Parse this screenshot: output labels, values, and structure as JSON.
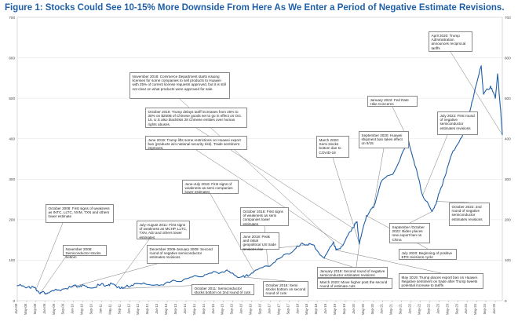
{
  "title": "Figure 1: Stocks Could See 10-15% More Downside From Here As We Enter a Period of Negative Estimate Revisions.",
  "chart_data": {
    "type": "line",
    "title": "Figure 1: Stocks Could See 10-15% More Downside From Here As We Enter a Period of Negative Estimate Revisions.",
    "ylim": [
      0,
      7000
    ],
    "y_ticks": [
      "0",
      "100",
      "200",
      "300",
      "400",
      "500",
      "600",
      "700"
    ],
    "y_tick_values": [
      0,
      1000,
      2000,
      3000,
      4000,
      5000,
      6000,
      7000
    ],
    "x_ticks": [
      "Jan-08",
      "May-08",
      "Sep-08",
      "Jan-09",
      "May-09",
      "Sep-09",
      "Jan-10",
      "May-10",
      "Sep-10",
      "Jan-11",
      "May-11",
      "Sep-11",
      "Jan-12",
      "May-12",
      "Sep-12",
      "Jan-13",
      "May-13",
      "Sep-13",
      "Jan-14",
      "May-14",
      "Sep-14",
      "Jan-15",
      "May-15",
      "Sep-15",
      "Jan-16",
      "May-16",
      "Sep-16",
      "Jan-17",
      "May-17",
      "Sep-17",
      "Jan-18",
      "May-18",
      "Sep-18",
      "Jan-19",
      "May-19",
      "Sep-19",
      "Jan-20",
      "May-20",
      "Sep-20",
      "Jan-21",
      "May-21",
      "Sep-21",
      "Jan-22",
      "May-22",
      "Sep-22",
      "Jan-23",
      "May-23",
      "Sep-23",
      "Jan-24",
      "May-24",
      "Sep-24",
      "Jan-25"
    ],
    "series": [
      {
        "color": "#1f5fa8",
        "points": [
          [
            "2008-01",
            370
          ],
          [
            "2008-06",
            350
          ],
          [
            "2008-09",
            280
          ],
          [
            "2008-11",
            200
          ],
          [
            "2009-02",
            190
          ],
          [
            "2009-06",
            260
          ],
          [
            "2009-12",
            330
          ],
          [
            "2010-04",
            370
          ],
          [
            "2010-07",
            320
          ],
          [
            "2010-12",
            380
          ],
          [
            "2011-04",
            400
          ],
          [
            "2011-07",
            380
          ],
          [
            "2011-10",
            300
          ],
          [
            "2012-03",
            420
          ],
          [
            "2012-11",
            380
          ],
          [
            "2013-06",
            450
          ],
          [
            "2013-12",
            520
          ],
          [
            "2014-06",
            600
          ],
          [
            "2014-12",
            680
          ],
          [
            "2015-06",
            740
          ],
          [
            "2015-10",
            620
          ],
          [
            "2016-02",
            580
          ],
          [
            "2016-06",
            720
          ],
          [
            "2016-12",
            850
          ],
          [
            "2017-06",
            1080
          ],
          [
            "2017-12",
            1300
          ],
          [
            "2018-03",
            1400
          ],
          [
            "2018-07",
            1380
          ],
          [
            "2018-12",
            1050
          ],
          [
            "2019-04",
            1450
          ],
          [
            "2019-05",
            1250
          ],
          [
            "2019-08",
            1370
          ],
          [
            "2019-12",
            1800
          ],
          [
            "2020-02",
            1950
          ],
          [
            "2020-03",
            1400
          ],
          [
            "2020-06",
            2100
          ],
          [
            "2020-09",
            2300
          ],
          [
            "2020-12",
            2900
          ],
          [
            "2021-06",
            3200
          ],
          [
            "2021-12",
            3950
          ],
          [
            "2022-03",
            3300
          ],
          [
            "2022-06",
            2600
          ],
          [
            "2022-10",
            2200
          ],
          [
            "2022-12",
            2450
          ],
          [
            "2023-03",
            3000
          ],
          [
            "2023-07",
            3700
          ],
          [
            "2023-12",
            4200
          ],
          [
            "2024-03",
            4900
          ],
          [
            "2024-07",
            5800
          ],
          [
            "2024-08",
            5100
          ],
          [
            "2024-11",
            5300
          ],
          [
            "2025-01",
            5000
          ],
          [
            "2025-02",
            5600
          ],
          [
            "2025-03",
            4900
          ],
          [
            "2025-04",
            4100
          ]
        ]
      }
    ],
    "annotations": [
      "November 2018: Commerce Department starts issuing licenses for some companies to sell products to Huawei with 25% of current license requests approved, but it is still not clear on what products were approved for sale.",
      "October 2019: Trump delays tariff increases from 25% to 30% on $250B of Chinese goods set to go in effect on Oct. 15. U.S also blacklists 28 Chinese entities over human rights abuses.",
      "June 2019: Trump lifts some restrictions on Huawei export ban (products w/o national security risk). Trade sentiment improves.",
      "June-July 2016: First signs of weakness as semi companies lower estimates",
      "October 2016: First signs of weakness as semi companies lower estimates",
      "June 2018: Peak and initial geopolitical US trade tensions rise",
      "October 2008: First signs of weakness as INTC, LLTC, NVM, TXN and others lower estimate",
      "November 2008: Semiconductor stocks bottom",
      "July-August 2011: First signs of weakness as MCHP, LLTC, TXN, ADI and others lower estimates",
      "December 2009-January 2009: Second round of negative semiconductor estimates revisions",
      "October 2011: Semiconductor stocks bottom on 2nd round of cuts",
      "October 2016: Semi stocks bottom on second round of cuts",
      "January 2019: Second round of negative semiconductor estimates revisions",
      "March 2020: Move higher post the second round of estimate cuts",
      "March 2020: Semi stocks bottom due to COVID-19",
      "September 2020: Huawei shipment ban takes effect on 9/15",
      "January 2022: Fed Rate Hike Concerns",
      "July 2022: First round of negative semiconductor estimates revisions",
      "September /October 2022: Biden places new export ban on China",
      "July 2020: Beginning of positive EPS revisions cycle",
      "May 2019: Trump places export ban on Huawei. Negative sentiment on trade after Trump tweets potential increase to tariffs",
      "October 2022: 2nd round of negative semiconductor estimates revisions",
      "April 2020: Trump Administration announces reciprocal tariffs"
    ]
  }
}
